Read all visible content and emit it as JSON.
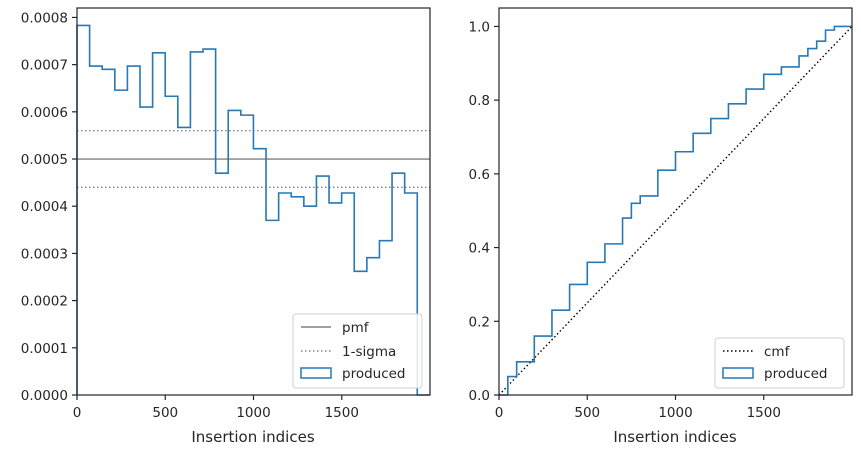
{
  "chart_data": [
    {
      "type": "step",
      "title": "",
      "xlabel": "Insertion indices",
      "ylabel": "",
      "xlim": [
        0,
        2000
      ],
      "ylim": [
        0,
        0.00082
      ],
      "xticks": [
        0,
        500,
        1000,
        1500
      ],
      "yticks": [
        "0.0000",
        "0.0001",
        "0.0002",
        "0.0003",
        "0.0004",
        "0.0005",
        "0.0006",
        "0.0007",
        "0.0008"
      ],
      "grid": false,
      "legend_position": "lower right",
      "reference_lines": [
        {
          "name": "pmf",
          "style": "solid",
          "y": 0.0005
        },
        {
          "name": "1-sigma",
          "style": "dotted",
          "y": 0.00056
        },
        {
          "name": "1-sigma",
          "style": "dotted",
          "y": 0.00044
        }
      ],
      "series": [
        {
          "name": "produced",
          "bin_width": 71.4,
          "values": [
            0.000783,
            0.000697,
            0.00069,
            0.000646,
            0.000697,
            0.00061,
            0.000725,
            0.000633,
            0.000567,
            0.000727,
            0.000733,
            0.00047,
            0.000603,
            0.000593,
            0.000522,
            0.00037,
            0.000428,
            0.00042,
            0.0004,
            0.000464,
            0.000407,
            0.000428,
            0.000262,
            0.000291,
            0.000327,
            0.00047,
            0.000428,
            0.0
          ]
        }
      ],
      "legend": [
        "pmf",
        "1-sigma",
        "produced"
      ]
    },
    {
      "type": "step",
      "title": "",
      "xlabel": "Insertion indices",
      "ylabel": "",
      "xlim": [
        0,
        2000
      ],
      "ylim": [
        0,
        1.05
      ],
      "xticks": [
        0,
        500,
        1000,
        1500
      ],
      "yticks": [
        "0.0",
        "0.2",
        "0.4",
        "0.6",
        "0.8",
        "1.0"
      ],
      "grid": false,
      "legend_position": "lower right",
      "reference_lines": [
        {
          "name": "cmf",
          "style": "dotted",
          "x": [
            0,
            2000
          ],
          "y": [
            0,
            1
          ]
        }
      ],
      "series": [
        {
          "name": "produced",
          "x": [
            0,
            50,
            100,
            200,
            300,
            400,
            500,
            600,
            700,
            750,
            800,
            900,
            1000,
            1100,
            1200,
            1300,
            1400,
            1500,
            1600,
            1700,
            1750,
            1800,
            1850,
            1900,
            1930,
            2000
          ],
          "y": [
            0,
            0.05,
            0.09,
            0.16,
            0.23,
            0.3,
            0.36,
            0.41,
            0.48,
            0.52,
            0.54,
            0.61,
            0.66,
            0.71,
            0.75,
            0.79,
            0.83,
            0.87,
            0.89,
            0.92,
            0.94,
            0.96,
            0.99,
            1.0,
            1.0,
            1.0
          ]
        }
      ],
      "legend": [
        "cmf",
        "produced"
      ]
    }
  ],
  "colors": {
    "produced": "#2878b5",
    "pmf": "#808080",
    "sigma": "#808080",
    "cmf": "#000000",
    "axes": "#262626"
  }
}
